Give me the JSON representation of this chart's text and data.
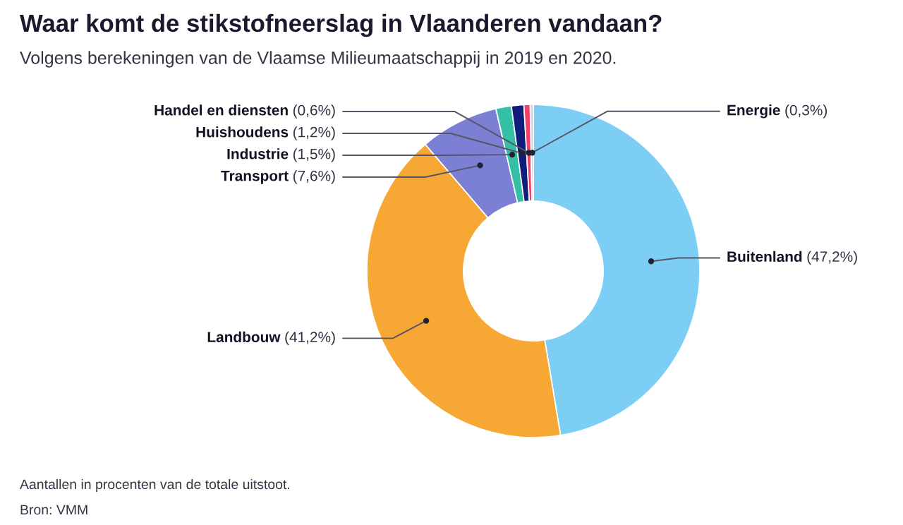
{
  "chart_data": {
    "type": "donut",
    "title": "Waar komt de stikstofneerslag in Vlaanderen vandaan?",
    "subtitle": "Volgens berekeningen van de Vlaamse Milieumaatschappij in 2019 en 2020.",
    "categories": [
      "Buitenland",
      "Landbouw",
      "Transport",
      "Industrie",
      "Huishoudens",
      "Handel en diensten",
      "Energie"
    ],
    "values": [
      47.2,
      41.2,
      7.6,
      1.5,
      1.2,
      0.6,
      0.3
    ],
    "value_labels": [
      "(47,2%)",
      "(41,2%)",
      "(7,6%)",
      "(1,5%)",
      "(1,2%)",
      "(0,6%)",
      "(0,3%)"
    ],
    "colors": [
      "#7ccef4",
      "#f7a733",
      "#7b80d5",
      "#34c0a5",
      "#111d7a",
      "#f2426b",
      "#c9d3e6"
    ],
    "annotations": [
      "Aantallen in procenten van de totale uitstoot.",
      "Bron: VMM"
    ]
  }
}
